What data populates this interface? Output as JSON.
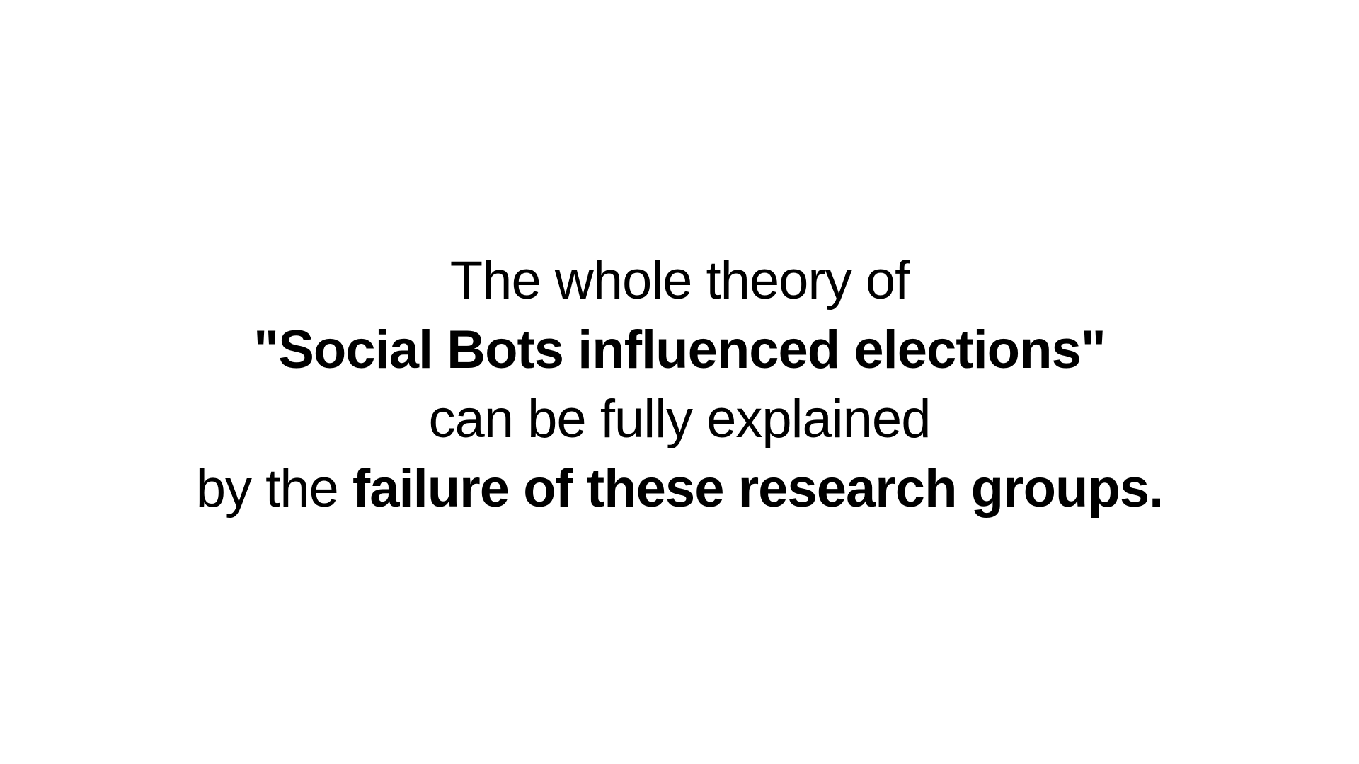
{
  "slide": {
    "line1": "The whole theory of",
    "line2": "\"Social Bots influenced elections\"",
    "line3": "can be fully explained",
    "line4_normal": "by the ",
    "line4_bold": "failure of these research groups."
  },
  "colors": {
    "background": "#ffffff",
    "text": "#000000"
  }
}
